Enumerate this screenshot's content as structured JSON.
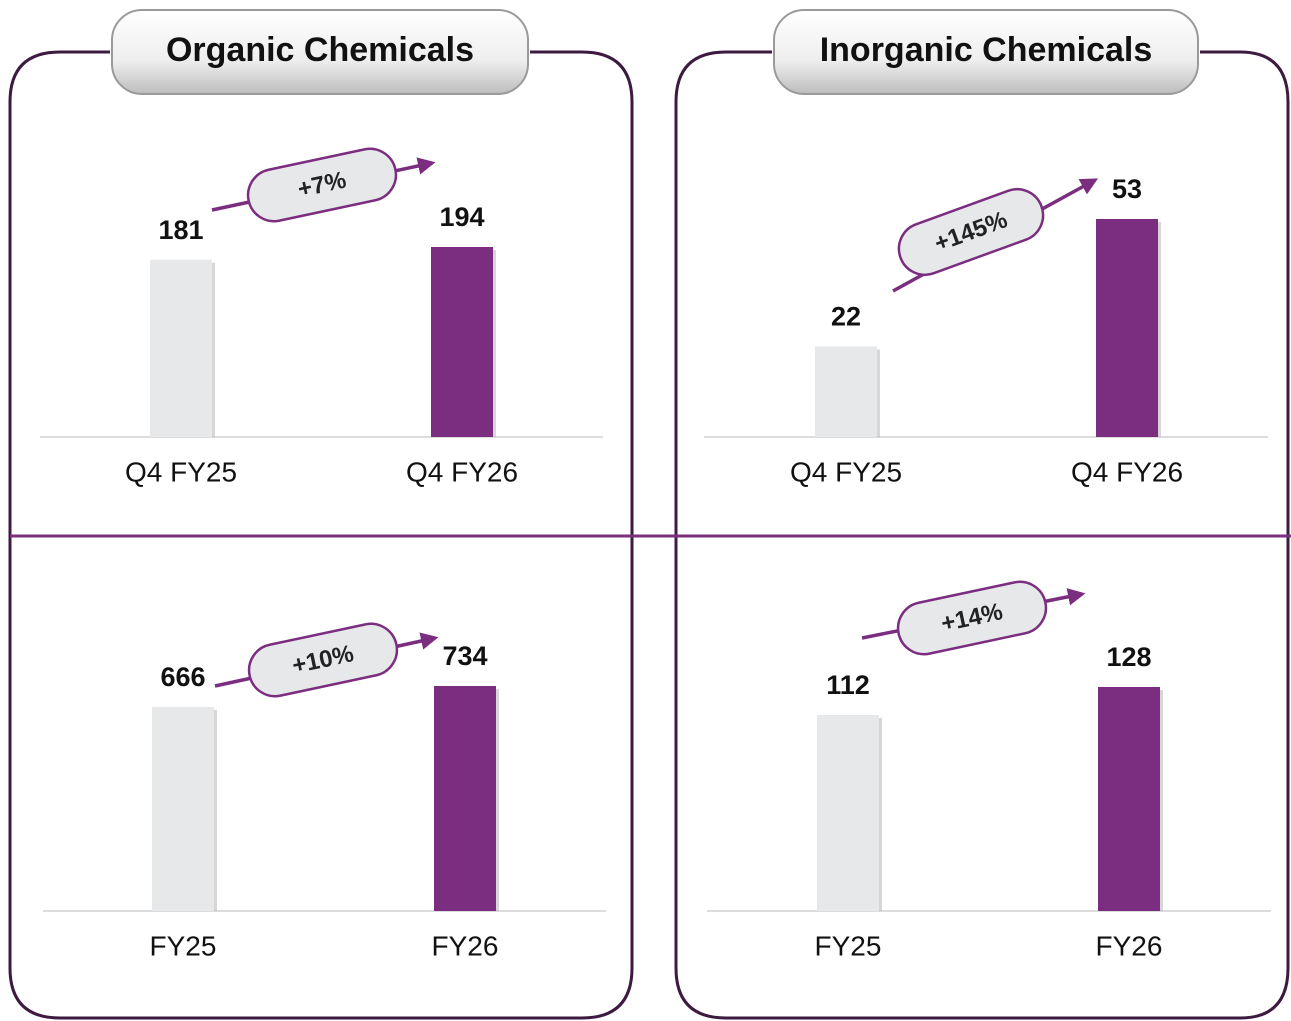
{
  "panels": [
    {
      "title": "Organic Chemicals"
    },
    {
      "title": "Inorganic Chemicals"
    }
  ],
  "chart_data": [
    {
      "type": "bar",
      "categories": [
        "Q4 FY25",
        "Q4 FY26"
      ],
      "values": [
        181,
        194
      ],
      "colors": [
        "#e6e8ea",
        "#7b2d80"
      ],
      "annotation": "+7%"
    },
    {
      "type": "bar",
      "categories": [
        "Q4 FY25",
        "Q4 FY26"
      ],
      "values": [
        22,
        53
      ],
      "colors": [
        "#e6e8ea",
        "#7b2d80"
      ],
      "annotation": "+145%"
    },
    {
      "type": "bar",
      "categories": [
        "FY25",
        "FY26"
      ],
      "values": [
        666,
        734
      ],
      "colors": [
        "#e6e8ea",
        "#7b2d80"
      ],
      "annotation": "+10%"
    },
    {
      "type": "bar",
      "categories": [
        "FY25",
        "FY26"
      ],
      "values": [
        112,
        128
      ],
      "colors": [
        "#e6e8ea",
        "#7b2d80"
      ],
      "annotation": "+14%"
    }
  ]
}
